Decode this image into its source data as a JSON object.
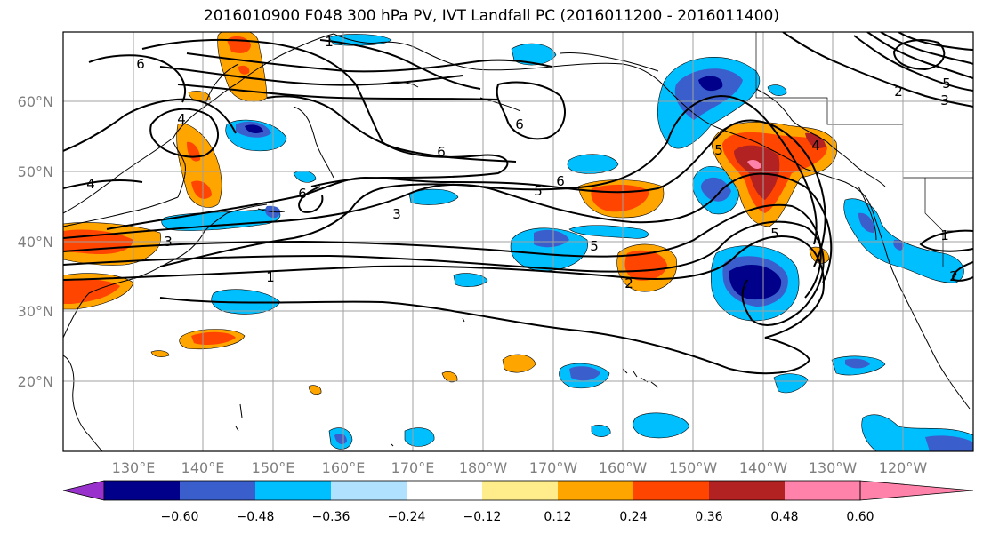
{
  "title": "2016010900 F048 300 hPa PV, IVT Landfall PC (2016011200 - 2016011400)",
  "lat_labels": [
    "60°N",
    "50°N",
    "40°N",
    "30°N",
    "20°N"
  ],
  "lon_labels": [
    "130°E",
    "140°E",
    "150°E",
    "160°E",
    "170°E",
    "180°W",
    "170°W",
    "160°W",
    "150°W",
    "140°W",
    "130°W",
    "120°W"
  ],
  "colorbar": {
    "ticks": [
      "−0.60",
      "−0.48",
      "−0.36",
      "−0.24",
      "−0.12",
      "0.12",
      "0.24",
      "0.36",
      "0.48",
      "0.60"
    ],
    "colors": [
      "#9932cc",
      "#00008b",
      "#3a5fcd",
      "#00bfff",
      "#b0e2ff",
      "#ffffff",
      "#ffec8b",
      "#ffa500",
      "#ff4500",
      "#b22222",
      "#ff82ab"
    ]
  },
  "contour_labels": [
    "6",
    "4",
    "4",
    "1",
    "6",
    "6",
    "5",
    "6",
    "3",
    "3",
    "1",
    "5",
    "2",
    "6",
    "4",
    "5",
    "5",
    "2",
    "1",
    "3",
    "5",
    "2"
  ]
}
